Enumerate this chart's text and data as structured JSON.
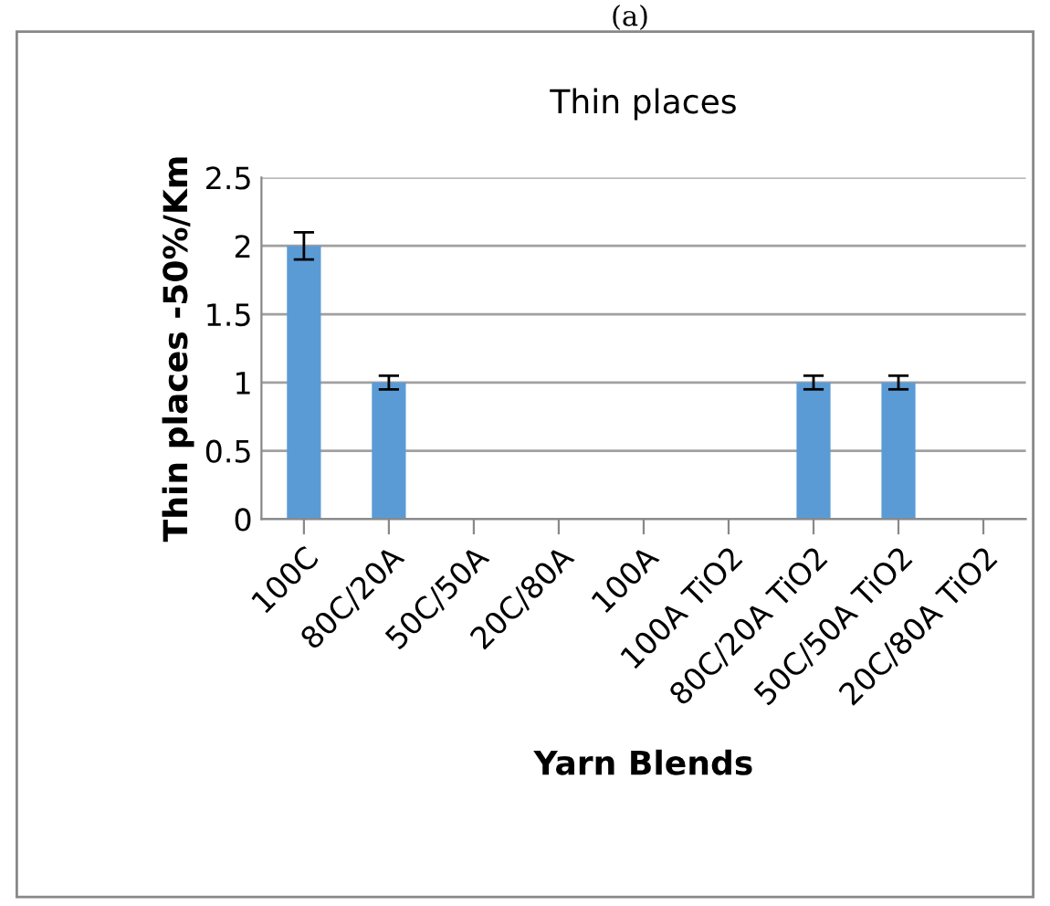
{
  "chart_data": {
    "type": "bar",
    "title": "Thin places",
    "xlabel": "Yarn Blends",
    "ylabel": "Thin places -50%/Km",
    "categories": [
      "100C",
      "80C/20A",
      "50C/50A",
      "20C/80A",
      "100A",
      "100A TiO2",
      "80C/20A TiO2",
      "50C/50A TiO2",
      "20C/80A TiO2"
    ],
    "values": [
      2,
      1,
      0,
      0,
      0,
      0,
      1,
      1,
      0
    ],
    "errors": [
      0.1,
      0.05,
      null,
      null,
      null,
      null,
      0.05,
      0.05,
      null
    ],
    "color": "#5b9bd5",
    "ylim": [
      0,
      2.5
    ],
    "yticks": [
      0,
      0.5,
      1,
      1.5,
      2,
      2.5
    ],
    "grid": "y",
    "annotations": [
      "(a)"
    ]
  }
}
